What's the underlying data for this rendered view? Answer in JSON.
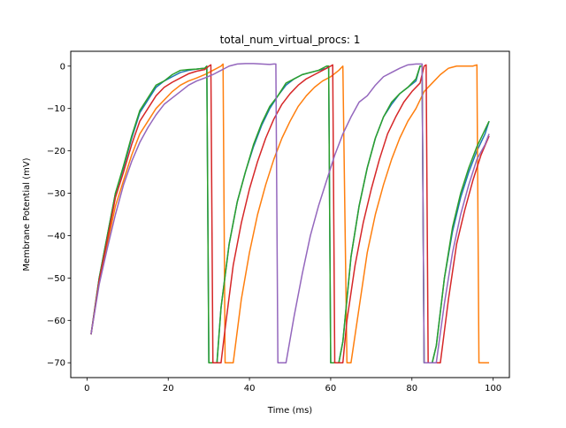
{
  "chart_data": {
    "type": "line",
    "title": "total_num_virtual_procs: 1",
    "xlabel": "Time (ms)",
    "ylabel": "Membrane Potential (mV)",
    "xlim": [
      -4.0,
      104.0
    ],
    "ylim": [
      -73.5,
      3.5
    ],
    "xticks": [
      0,
      20,
      40,
      60,
      80,
      100
    ],
    "yticks": [
      0,
      -10,
      -20,
      -30,
      -40,
      -50,
      -60,
      -70
    ],
    "ytick_labels": [
      "0",
      "−10",
      "−20",
      "−30",
      "−40",
      "−50",
      "−60",
      "−70"
    ],
    "grid": false,
    "legend": "none",
    "series": [
      {
        "color": "#1f77b4",
        "x": [
          1,
          3,
          5,
          7,
          9,
          11,
          13,
          15,
          17,
          19,
          21,
          23,
          25,
          27,
          29,
          29.5,
          30,
          31,
          32,
          33,
          35,
          37,
          39,
          41,
          43,
          45,
          47,
          49,
          51,
          53,
          55,
          57,
          59,
          59.5,
          60,
          61,
          62,
          63,
          65,
          67,
          69,
          71,
          73,
          75,
          77,
          79,
          81,
          82,
          82.5,
          83,
          84,
          85,
          86,
          88,
          90,
          92,
          94,
          96,
          98,
          99
        ],
        "y": [
          -63.3,
          -50.0,
          -40.0,
          -30.0,
          -24.0,
          -17.0,
          -11.0,
          -8.0,
          -5.0,
          -3.5,
          -2.5,
          -1.5,
          -1.0,
          -0.7,
          -0.5,
          0.0,
          -70.0,
          -70.0,
          -70.0,
          -57.0,
          -42.0,
          -32.0,
          -25.0,
          -19.0,
          -14.0,
          -10.0,
          -7.0,
          -4.5,
          -3.0,
          -2.0,
          -1.5,
          -1.0,
          -0.5,
          0.0,
          -70.0,
          -70.0,
          -70.0,
          -65.0,
          -45.0,
          -33.0,
          -24.0,
          -17.0,
          -12.0,
          -9.0,
          -6.5,
          -5.0,
          -3.5,
          0.0,
          0.0,
          -70.0,
          -70.0,
          -70.0,
          -66.0,
          -50.0,
          -39.0,
          -31.0,
          -25.0,
          -20.0,
          -16.0,
          -13.0
        ]
      },
      {
        "color": "#ff7f0e",
        "x": [
          1,
          3,
          5,
          7,
          9,
          11,
          13,
          15,
          17,
          19,
          21,
          23,
          25,
          27,
          29,
          31,
          33,
          33.5,
          34,
          35,
          36,
          38,
          40,
          42,
          44,
          46,
          48,
          50,
          52,
          54,
          56,
          58,
          60,
          62,
          63,
          64,
          65,
          67,
          69,
          71,
          73,
          75,
          77,
          79,
          81,
          83,
          85,
          87,
          89,
          91,
          93,
          95,
          96,
          96.5,
          97,
          98,
          99
        ],
        "y": [
          -63.3,
          -51.0,
          -42.0,
          -33.0,
          -27.0,
          -21.0,
          -16.0,
          -13.0,
          -10.0,
          -8.0,
          -6.0,
          -4.5,
          -3.5,
          -2.8,
          -2.0,
          -1.0,
          0.0,
          0.5,
          -70.0,
          -70.0,
          -70.0,
          -55.0,
          -44.0,
          -35.0,
          -28.0,
          -22.0,
          -17.0,
          -13.0,
          -9.5,
          -7.0,
          -5.0,
          -3.5,
          -2.5,
          -1.0,
          0.0,
          -70.0,
          -70.0,
          -57.0,
          -44.0,
          -35.0,
          -28.0,
          -22.0,
          -17.0,
          -13.0,
          -10.0,
          -6.0,
          -4.0,
          -2.0,
          -0.5,
          0.0,
          0.0,
          0.0,
          0.3,
          -70.0,
          -70.0,
          -70.0,
          -70.0
        ]
      },
      {
        "color": "#2ca02c",
        "x": [
          1,
          3,
          5,
          7,
          9,
          11,
          13,
          15,
          17,
          19,
          21,
          23,
          25,
          27,
          29,
          29.5,
          30,
          31,
          32,
          33,
          35,
          37,
          39,
          41,
          43,
          45,
          47,
          49,
          51,
          53,
          55,
          57,
          59,
          59.5,
          60,
          61,
          62,
          63,
          65,
          67,
          69,
          71,
          73,
          75,
          77,
          79,
          81,
          82,
          82.5,
          83,
          84,
          85,
          86,
          88,
          90,
          92,
          94,
          96,
          98,
          99
        ],
        "y": [
          -63.3,
          -50.0,
          -40.0,
          -30.0,
          -23.5,
          -16.5,
          -10.5,
          -7.5,
          -4.5,
          -3.5,
          -2.0,
          -1.0,
          -0.8,
          -0.7,
          -0.5,
          0.0,
          -70.0,
          -70.0,
          -70.0,
          -57.0,
          -42.0,
          -32.0,
          -25.0,
          -18.5,
          -13.5,
          -9.5,
          -7.0,
          -4.0,
          -3.0,
          -2.0,
          -1.5,
          -1.0,
          0.0,
          0.0,
          -70.0,
          -70.0,
          -70.0,
          -65.0,
          -45.0,
          -33.0,
          -24.0,
          -17.0,
          -12.0,
          -8.5,
          -6.5,
          -5.0,
          -3.0,
          0.0,
          0.0,
          -70.0,
          -70.0,
          -70.0,
          -66.0,
          -50.0,
          -38.0,
          -30.0,
          -24.0,
          -19.0,
          -15.0,
          -13.0
        ]
      },
      {
        "color": "#d62728",
        "x": [
          1,
          3,
          5,
          7,
          9,
          11,
          13,
          15,
          17,
          19,
          21,
          23,
          25,
          27,
          29,
          30,
          30.5,
          31,
          32,
          33,
          34,
          36,
          38,
          40,
          42,
          44,
          46,
          48,
          50,
          52,
          54,
          56,
          58,
          60,
          60.5,
          61,
          62,
          63,
          64,
          66,
          68,
          70,
          72,
          74,
          76,
          78,
          80,
          82,
          83,
          83.5,
          84,
          85,
          86,
          87,
          89,
          91,
          93,
          95,
          97,
          99
        ],
        "y": [
          -63.3,
          -50.5,
          -41.0,
          -31.0,
          -25.0,
          -18.5,
          -13.0,
          -10.0,
          -7.0,
          -5.0,
          -3.8,
          -2.8,
          -1.8,
          -1.2,
          -0.8,
          0.0,
          0.3,
          -70.0,
          -70.0,
          -70.0,
          -62.0,
          -47.0,
          -37.0,
          -29.0,
          -22.5,
          -17.0,
          -12.5,
          -9.0,
          -6.5,
          -4.5,
          -3.0,
          -2.0,
          -1.0,
          0.0,
          0.3,
          -70.0,
          -70.0,
          -70.0,
          -60.0,
          -47.0,
          -37.0,
          -29.0,
          -22.0,
          -16.0,
          -12.0,
          -8.5,
          -6.0,
          -4.0,
          0.0,
          0.3,
          -70.0,
          -70.0,
          -70.0,
          -70.0,
          -55.0,
          -42.0,
          -34.0,
          -27.0,
          -21.0,
          -16.5
        ]
      },
      {
        "color": "#9467bd",
        "x": [
          1,
          3,
          5,
          7,
          9,
          11,
          13,
          15,
          17,
          19,
          21,
          23,
          25,
          27,
          29,
          31,
          33,
          35,
          37,
          39,
          41,
          43,
          45,
          46,
          46.5,
          47,
          48,
          49,
          51,
          53,
          55,
          57,
          59,
          61,
          63,
          65,
          67,
          69,
          71,
          73,
          75,
          77,
          79,
          81,
          82,
          82.5,
          83,
          84,
          85,
          86,
          88,
          90,
          92,
          94,
          96,
          98,
          99
        ],
        "y": [
          -63.3,
          -51.5,
          -43.0,
          -35.0,
          -28.0,
          -22.5,
          -18.0,
          -14.5,
          -11.5,
          -9.0,
          -7.5,
          -6.0,
          -4.5,
          -3.5,
          -2.8,
          -2.0,
          -1.0,
          0.0,
          0.5,
          0.6,
          0.6,
          0.5,
          0.4,
          0.5,
          0.5,
          -70.0,
          -70.0,
          -70.0,
          -59.0,
          -49.0,
          -40.0,
          -33.0,
          -27.0,
          -21.0,
          -16.0,
          -12.0,
          -8.5,
          -7.0,
          -4.5,
          -2.5,
          -1.5,
          -0.5,
          0.3,
          0.5,
          0.5,
          0.5,
          -70.0,
          -70.0,
          -70.0,
          -70.0,
          -56.0,
          -44.0,
          -35.0,
          -28.0,
          -22.0,
          -18.5,
          -16.0
        ]
      }
    ]
  }
}
